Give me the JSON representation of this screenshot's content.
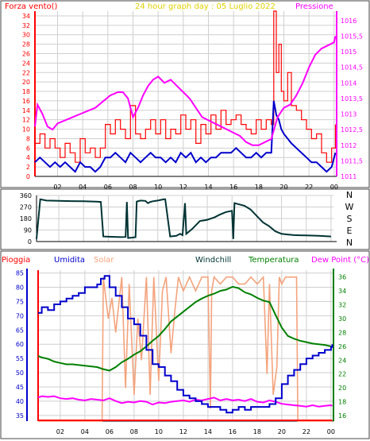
{
  "colors": {
    "wind": "#ff0000",
    "gust_line": "#0000cc",
    "pressure": "#ff00ff",
    "humidity": "#0000cc",
    "solar": "#f4a37c",
    "temperature": "#008000",
    "dewpoint": "#ff00ff",
    "rain": "#ff0000",
    "wind_dir": "#003333",
    "grid": "#cfcfcf",
    "title": "#e0d200"
  },
  "chart_data": [
    {
      "type": "line",
      "title": "24 hour graph day : 05 Luglio 2022",
      "left_label": "Forza vento()",
      "right_label": "Pressione",
      "x_ticks": [
        "02",
        "04",
        "06",
        "08",
        "10",
        "12",
        "14",
        "16",
        "18",
        "20",
        "22",
        "00"
      ],
      "y_left_ticks": [
        "0",
        "2",
        "4",
        "6",
        "8",
        "10",
        "12",
        "14",
        "16",
        "18",
        "20",
        "22",
        "24",
        "26",
        "28",
        "30",
        "32",
        "34"
      ],
      "y_right_ticks": [
        "1011",
        "1011,5",
        "1012",
        "1012,5",
        "1013",
        "1013,5",
        "1014",
        "1014,5",
        "1015",
        "1015,5",
        "1016"
      ],
      "ylim_left": [
        0,
        35
      ],
      "ylim_right": [
        1011,
        1016.3
      ],
      "xlim": [
        0.2,
        24.2
      ],
      "grid": true,
      "series": [
        {
          "axis": "left",
          "style": "gust",
          "x": [
            0.2,
            0.6,
            1.0,
            1.4,
            1.8,
            2.2,
            2.6,
            3.0,
            3.4,
            3.8,
            4.2,
            4.6,
            5.0,
            5.4,
            5.8,
            6.2,
            6.6,
            7.0,
            7.4,
            7.8,
            8.2,
            8.6,
            9.0,
            9.4,
            9.8,
            10.2,
            10.6,
            11.0,
            11.4,
            11.8,
            12.2,
            12.6,
            13.0,
            13.4,
            13.8,
            14.2,
            14.6,
            15.0,
            15.4,
            15.8,
            16.2,
            16.6,
            17.0,
            17.4,
            17.8,
            18.2,
            18.6,
            19.0,
            19.2,
            19.4,
            19.6,
            19.8,
            20.0,
            20.3,
            20.6,
            21.0,
            21.4,
            21.8,
            22.2,
            22.6,
            23.0,
            23.4,
            23.8,
            24.1
          ],
          "values": [
            7,
            9,
            6,
            8,
            6,
            4,
            7,
            5,
            3,
            8,
            5,
            6,
            4,
            6,
            11,
            9,
            12,
            10,
            8,
            15,
            9,
            8,
            10,
            12,
            9,
            12,
            8,
            10,
            9,
            13,
            10,
            12,
            7,
            11,
            9,
            13,
            10,
            14,
            11,
            12,
            13,
            11,
            10,
            9,
            12,
            10,
            12,
            11,
            35,
            22,
            28,
            18,
            16,
            22,
            15,
            14,
            12,
            10,
            8,
            9,
            5,
            3,
            6,
            11
          ]
        },
        {
          "axis": "left",
          "style": "average",
          "x": [
            0.2,
            0.6,
            1.0,
            1.4,
            1.8,
            2.2,
            2.6,
            3.0,
            3.4,
            3.8,
            4.2,
            4.6,
            5.0,
            5.4,
            5.8,
            6.2,
            6.6,
            7.0,
            7.4,
            7.8,
            8.2,
            8.6,
            9.0,
            9.4,
            9.8,
            10.2,
            10.6,
            11.0,
            11.4,
            11.8,
            12.2,
            12.6,
            13.0,
            13.4,
            13.8,
            14.2,
            14.6,
            15.0,
            15.4,
            15.8,
            16.2,
            16.6,
            17.0,
            17.4,
            17.8,
            18.2,
            18.6,
            19.0,
            19.2,
            19.4,
            19.6,
            19.8,
            20.0,
            20.3,
            20.6,
            21.0,
            21.4,
            21.8,
            22.2,
            22.6,
            23.0,
            23.4,
            23.8,
            24.1
          ],
          "values": [
            3,
            4,
            3,
            2,
            3,
            2,
            3,
            2,
            1,
            3,
            2,
            2,
            1,
            2,
            4,
            4,
            5,
            4,
            3,
            5,
            4,
            3,
            4,
            5,
            4,
            4,
            3,
            4,
            3,
            5,
            4,
            5,
            3,
            4,
            3,
            4,
            4,
            5,
            5,
            5,
            6,
            5,
            4,
            4,
            5,
            4,
            5,
            5,
            16,
            13,
            12,
            10,
            9,
            8,
            7,
            6,
            5,
            4,
            3,
            3,
            2,
            1,
            2,
            5
          ]
        },
        {
          "axis": "right",
          "style": "pressure",
          "x": [
            0.2,
            0.4,
            0.8,
            1.2,
            1.6,
            2.0,
            2.6,
            3.2,
            3.8,
            4.4,
            5.0,
            5.6,
            6.2,
            6.8,
            7.2,
            7.6,
            8.0,
            8.4,
            8.8,
            9.2,
            9.6,
            10.0,
            10.5,
            11.0,
            11.5,
            12.0,
            12.5,
            13.0,
            13.5,
            14.0,
            14.5,
            15.0,
            15.5,
            16.0,
            16.5,
            17.0,
            17.5,
            18.0,
            18.5,
            19.0,
            19.5,
            20.0,
            20.5,
            21.0,
            21.5,
            22.0,
            22.5,
            23.0,
            23.5,
            24.0,
            24.1
          ],
          "values": [
            1012.6,
            1013.3,
            1013.0,
            1012.6,
            1012.5,
            1012.7,
            1012.8,
            1012.9,
            1013.0,
            1013.1,
            1013.2,
            1013.4,
            1013.6,
            1013.7,
            1013.7,
            1013.5,
            1012.9,
            1013.2,
            1013.6,
            1013.9,
            1014.1,
            1014.2,
            1014.0,
            1014.1,
            1013.9,
            1013.7,
            1013.5,
            1013.2,
            1012.9,
            1012.8,
            1012.7,
            1012.6,
            1012.5,
            1012.4,
            1012.3,
            1012.1,
            1012.0,
            1012.0,
            1012.1,
            1012.2,
            1012.9,
            1013.2,
            1013.3,
            1013.6,
            1014.0,
            1014.5,
            1014.9,
            1015.1,
            1015.2,
            1015.3,
            1015.5
          ]
        }
      ]
    },
    {
      "type": "line",
      "title": "",
      "y_ticks": [
        "0",
        "90",
        "180",
        "270",
        "360"
      ],
      "ylim": [
        0,
        360
      ],
      "compass_labels": [
        "N",
        "W",
        "S",
        "E",
        "N"
      ],
      "grid": true,
      "series": [
        {
          "style": "direction",
          "x": [
            0.2,
            0.5,
            1.0,
            2.0,
            3.0,
            4.0,
            5.0,
            5.4,
            5.6,
            6.0,
            7.0,
            7.4,
            7.5,
            7.6,
            7.8,
            8.2,
            8.3,
            8.6,
            9.0,
            9.2,
            9.4,
            9.6,
            10.0,
            10.5,
            10.6,
            11.0,
            11.5,
            11.8,
            12.0,
            12.2,
            12.3,
            12.8,
            13.4,
            14.0,
            14.6,
            15.0,
            15.5,
            16.0,
            16.1,
            16.2,
            16.6,
            17.0,
            17.5,
            18.0,
            18.5,
            19.0,
            19.5,
            20.0,
            20.5,
            21.0,
            22.0,
            23.0,
            24.0
          ],
          "values": [
            20,
            330,
            320,
            318,
            316,
            315,
            312,
            310,
            40,
            38,
            35,
            36,
            310,
            28,
            30,
            34,
            312,
            320,
            318,
            300,
            310,
            315,
            320,
            330,
            330,
            40,
            45,
            60,
            50,
            300,
            60,
            100,
            160,
            170,
            190,
            210,
            230,
            240,
            20,
            300,
            290,
            280,
            250,
            200,
            150,
            120,
            80,
            60,
            55,
            50,
            48,
            45,
            40
          ]
        }
      ]
    },
    {
      "type": "line",
      "legend": [
        "Pioggia",
        "Umidita",
        "Solar",
        "Windchill",
        "Temperatura",
        "Dew Point (°C)"
      ],
      "y_left_ticks": [
        "35",
        "40",
        "45",
        "50",
        "55",
        "60",
        "65",
        "70",
        "75",
        "80",
        "85"
      ],
      "y_right_ticks": [
        "16",
        "18",
        "20",
        "22",
        "24",
        "26",
        "28",
        "30",
        "32",
        "34",
        "36"
      ],
      "ylim_left": [
        33,
        86
      ],
      "ylim_right": [
        15.2,
        37
      ],
      "grid": true,
      "series": [
        {
          "name": "Umidita",
          "axis": "left",
          "x": [
            0.2,
            0.5,
            1.0,
            1.5,
            2.0,
            2.5,
            3.0,
            3.5,
            4.0,
            4.5,
            5.0,
            5.3,
            5.6,
            6.0,
            6.5,
            7.0,
            7.5,
            8.0,
            8.5,
            9.0,
            9.5,
            10.0,
            10.5,
            11.0,
            11.5,
            12.0,
            12.5,
            13.0,
            13.5,
            14.0,
            14.5,
            15.0,
            15.5,
            16.0,
            16.5,
            17.0,
            17.5,
            18.0,
            18.5,
            19.0,
            19.5,
            20.0,
            20.5,
            21.0,
            21.5,
            22.0,
            22.5,
            23.0,
            23.5,
            24.0,
            24.1
          ],
          "values": [
            71,
            73,
            72,
            74,
            75,
            76,
            77,
            78,
            80,
            80,
            81,
            83,
            84,
            80,
            77,
            73,
            69,
            67,
            63,
            58,
            53,
            52,
            49,
            47,
            44,
            42,
            41,
            40,
            39,
            38,
            38,
            37,
            36,
            37,
            38,
            37,
            38,
            38,
            38,
            39,
            41,
            46,
            49,
            51,
            53,
            55,
            56,
            57,
            58,
            59,
            60
          ]
        },
        {
          "name": "Solar",
          "axis": "right",
          "x": [
            0.2,
            5.0,
            5.4,
            5.5,
            5.9,
            6.2,
            6.5,
            7.0,
            7.3,
            7.6,
            8.0,
            8.3,
            8.6,
            9.0,
            9.3,
            9.6,
            10.0,
            10.3,
            10.6,
            11.0,
            11.3,
            11.6,
            12.0,
            12.5,
            13.0,
            13.5,
            14.0,
            14.2,
            14.3,
            14.5,
            15.0,
            15.5,
            16.0,
            16.5,
            17.0,
            17.5,
            18.0,
            18.5,
            18.8,
            19.0,
            19.3,
            19.6,
            19.8,
            20.0,
            20.3,
            20.6,
            20.9,
            21.2,
            21.3,
            24.1
          ],
          "values": [
            15.2,
            15.2,
            15.2,
            36,
            30,
            33,
            28,
            36,
            20,
            35,
            19,
            30,
            24,
            36,
            19,
            36,
            21,
            34,
            36,
            25,
            31,
            36,
            34,
            36,
            34,
            36,
            36,
            17,
            34,
            36,
            35,
            36,
            36,
            35,
            35,
            36,
            35,
            36,
            22,
            35,
            19,
            23,
            36,
            35,
            36,
            36,
            36,
            36,
            15.2,
            15.2
          ]
        },
        {
          "name": "Temperatura",
          "axis": "right",
          "x": [
            0.2,
            0.5,
            1.0,
            1.5,
            2.0,
            2.5,
            3.0,
            3.5,
            4.0,
            4.5,
            5.0,
            5.5,
            6.0,
            6.5,
            7.0,
            7.5,
            8.0,
            8.5,
            9.0,
            9.5,
            10.0,
            10.5,
            11.0,
            11.5,
            12.0,
            12.5,
            13.0,
            13.5,
            14.0,
            14.5,
            15.0,
            15.5,
            16.0,
            16.5,
            17.0,
            17.5,
            18.0,
            18.5,
            19.0,
            19.5,
            20.0,
            20.5,
            21.0,
            21.5,
            22.0,
            22.5,
            23.0,
            23.5,
            24.0,
            24.1
          ],
          "values": [
            24.6,
            24.4,
            24.2,
            23.8,
            23.6,
            23.4,
            23.4,
            23.3,
            23.2,
            23.1,
            23.0,
            22.7,
            22.5,
            23.0,
            23.7,
            24.2,
            24.8,
            25.3,
            26.0,
            26.8,
            27.5,
            28.5,
            29.6,
            30.3,
            31.0,
            31.7,
            32.4,
            32.9,
            33.3,
            33.6,
            34.0,
            34.2,
            34.6,
            34.4,
            33.8,
            33.5,
            33.0,
            32.6,
            32.4,
            30.5,
            28.7,
            27.5,
            27.1,
            26.8,
            26.6,
            26.4,
            26.3,
            26.2,
            26.0,
            25.9
          ]
        },
        {
          "name": "Dew Point (°C)",
          "axis": "right",
          "x": [
            0.2,
            0.5,
            1.0,
            1.5,
            2.0,
            2.5,
            3.0,
            3.5,
            4.0,
            4.5,
            5.0,
            5.5,
            6.0,
            6.5,
            7.0,
            7.5,
            8.0,
            8.5,
            9.0,
            9.5,
            10.0,
            10.5,
            11.0,
            11.5,
            12.0,
            12.5,
            13.0,
            13.5,
            14.0,
            14.5,
            15.0,
            15.5,
            16.0,
            16.5,
            17.0,
            17.5,
            18.0,
            18.5,
            19.0,
            19.5,
            20.0,
            20.5,
            21.0,
            21.5,
            22.0,
            22.5,
            23.0,
            23.5,
            24.0,
            24.1
          ],
          "values": [
            18.6,
            18.8,
            18.7,
            18.8,
            18.5,
            18.4,
            18.5,
            18.3,
            18.2,
            18.4,
            18.3,
            18.2,
            18.5,
            18.1,
            17.8,
            18.0,
            17.9,
            18.1,
            18.0,
            17.6,
            17.9,
            17.8,
            18.0,
            18.1,
            18.2,
            18.0,
            18.3,
            18.2,
            18.4,
            18.6,
            18.2,
            18.4,
            18.2,
            18.3,
            18.1,
            18.4,
            18.0,
            17.9,
            18.2,
            18.0,
            17.7,
            17.6,
            17.5,
            17.4,
            17.3,
            17.5,
            17.3,
            17.4,
            17.5,
            17.4
          ]
        },
        {
          "name": "Pioggia",
          "axis": "rain",
          "x": [
            0.2,
            24.1
          ],
          "values": [
            0,
            0
          ]
        }
      ]
    }
  ]
}
